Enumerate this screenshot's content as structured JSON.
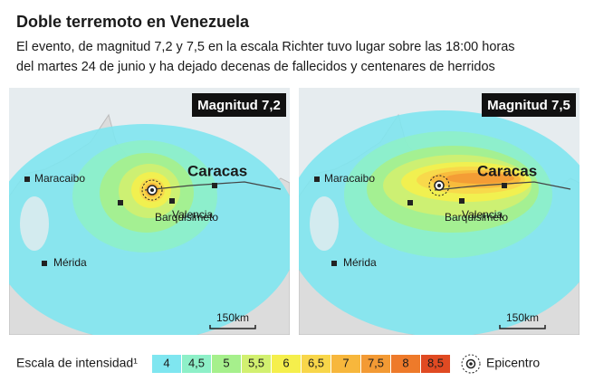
{
  "title": "Doble terremoto en Venezuela",
  "subtitle": [
    "El evento, de magnitud 7,2 y 7,5 en la escala Richter tuvo lugar sobre las 18:00 horas",
    "del martes 24 de junio y ha dejado decenas de fallecidos y centenares de herridos"
  ],
  "maps": [
    {
      "label": "Magnitud 7,2",
      "cities": [
        "Maracaibo",
        "Caracas",
        "Barquisimeto",
        "Valencia",
        "Mérida"
      ],
      "scale": "150km"
    },
    {
      "label": "Magnitud 7,5",
      "cities": [
        "Maracaibo",
        "Caracas",
        "Barquisimeto",
        "Valencia",
        "Mérida"
      ],
      "scale": "150km"
    }
  ],
  "legend": {
    "title": "Escala de intensidad¹",
    "items": [
      {
        "label": "4",
        "color": "#7fe6f0"
      },
      {
        "label": "4,5",
        "color": "#8ef0c8"
      },
      {
        "label": "5",
        "color": "#a6f08c"
      },
      {
        "label": "5,5",
        "color": "#d2f070"
      },
      {
        "label": "6",
        "color": "#f5ef4c"
      },
      {
        "label": "6,5",
        "color": "#f8d64a"
      },
      {
        "label": "7",
        "color": "#f7b73c"
      },
      {
        "label": "7,5",
        "color": "#f39a34"
      },
      {
        "label": "8",
        "color": "#ee7a2a"
      },
      {
        "label": "8,5",
        "color": "#e04a22"
      }
    ],
    "epicenter": "Epicentro"
  }
}
